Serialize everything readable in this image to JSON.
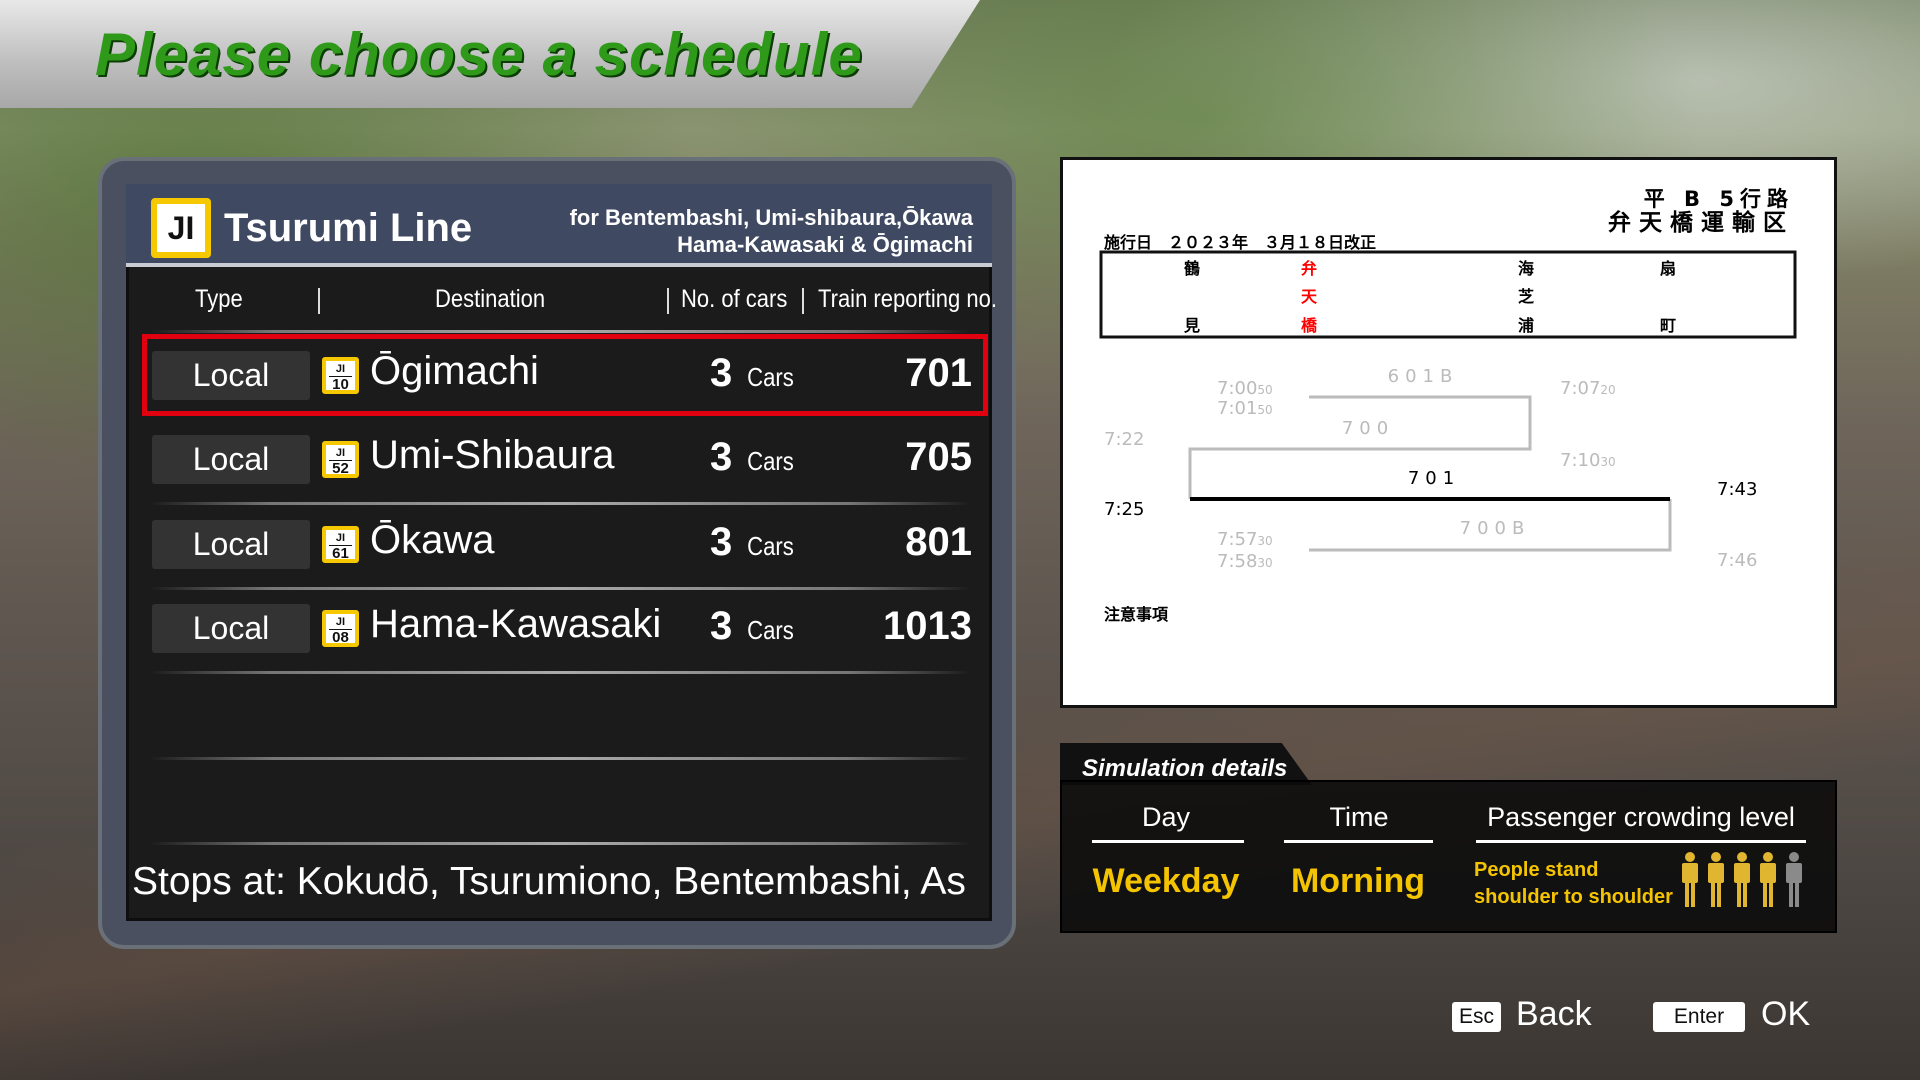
{
  "title": "Please choose a schedule",
  "line": {
    "badge": "JI",
    "name": "Tsurumi Line",
    "destinations_line1": "for Bentembashi, Umi-shibaura,Ōkawa",
    "destinations_line2": "Hama-Kawasaki & Ōgimachi"
  },
  "columns": {
    "type": "Type",
    "destination": "Destination",
    "cars": "No. of cars",
    "reporting": "Train reporting no."
  },
  "rows": [
    {
      "type": "Local",
      "station_code": "JI",
      "station_no": "10",
      "destination": "Ōgimachi",
      "cars": "3",
      "cars_unit": "Cars",
      "number": "701",
      "selected": true
    },
    {
      "type": "Local",
      "station_code": "JI",
      "station_no": "52",
      "destination": "Umi-Shibaura",
      "cars": "3",
      "cars_unit": "Cars",
      "number": "705"
    },
    {
      "type": "Local",
      "station_code": "JI",
      "station_no": "61",
      "destination": "Ōkawa",
      "cars": "3",
      "cars_unit": "Cars",
      "number": "801"
    },
    {
      "type": "Local",
      "station_code": "JI",
      "station_no": "08",
      "destination": "Hama-Kawasaki",
      "cars": "3",
      "cars_unit": "Cars",
      "number": "1013"
    }
  ],
  "stops": "Stops at: Kokudō, Tsurumiono, Bentembashi, As",
  "timetable": {
    "route": "平 B 5行路",
    "depot": "弁天橋運輸区",
    "effective": "施行日　２０２３年　３月１８日改正",
    "stations": [
      [
        "鶴",
        "",
        "見"
      ],
      [
        "弁",
        "天",
        "橋"
      ],
      [
        "海",
        "芝",
        "浦"
      ],
      [
        "扇",
        "",
        "町"
      ]
    ],
    "trains": {
      "t601b": "601B",
      "t700": "700",
      "t701": "701",
      "t700b": "700B"
    },
    "times": {
      "a": "7:00",
      "a_s": "50",
      "b": "7:01",
      "b_s": "50",
      "c": "7:22",
      "d": "7:07",
      "d_s": "20",
      "e": "7:10",
      "e_s": "30",
      "f": "7:25",
      "g": "7:43",
      "h": "7:57",
      "h_s": "30",
      "i": "7:58",
      "i_s": "30",
      "j": "7:46"
    },
    "notes": "注意事項"
  },
  "simulation": {
    "title": "Simulation details",
    "day_label": "Day",
    "time_label": "Time",
    "crowd_label": "Passenger crowding level",
    "day": "Weekday",
    "time": "Morning",
    "crowd_line1": "People stand",
    "crowd_line2": "shoulder to shoulder",
    "crowd_level": 4,
    "crowd_max": 5
  },
  "controls": {
    "esc_key": "Esc",
    "esc_label": "Back",
    "enter_key": "Enter",
    "enter_label": "OK"
  },
  "colors": {
    "accent_yellow": "#f5c400",
    "select_red": "#e10010",
    "title_green": "#2f9a1a",
    "red_station": "#ff0000"
  }
}
